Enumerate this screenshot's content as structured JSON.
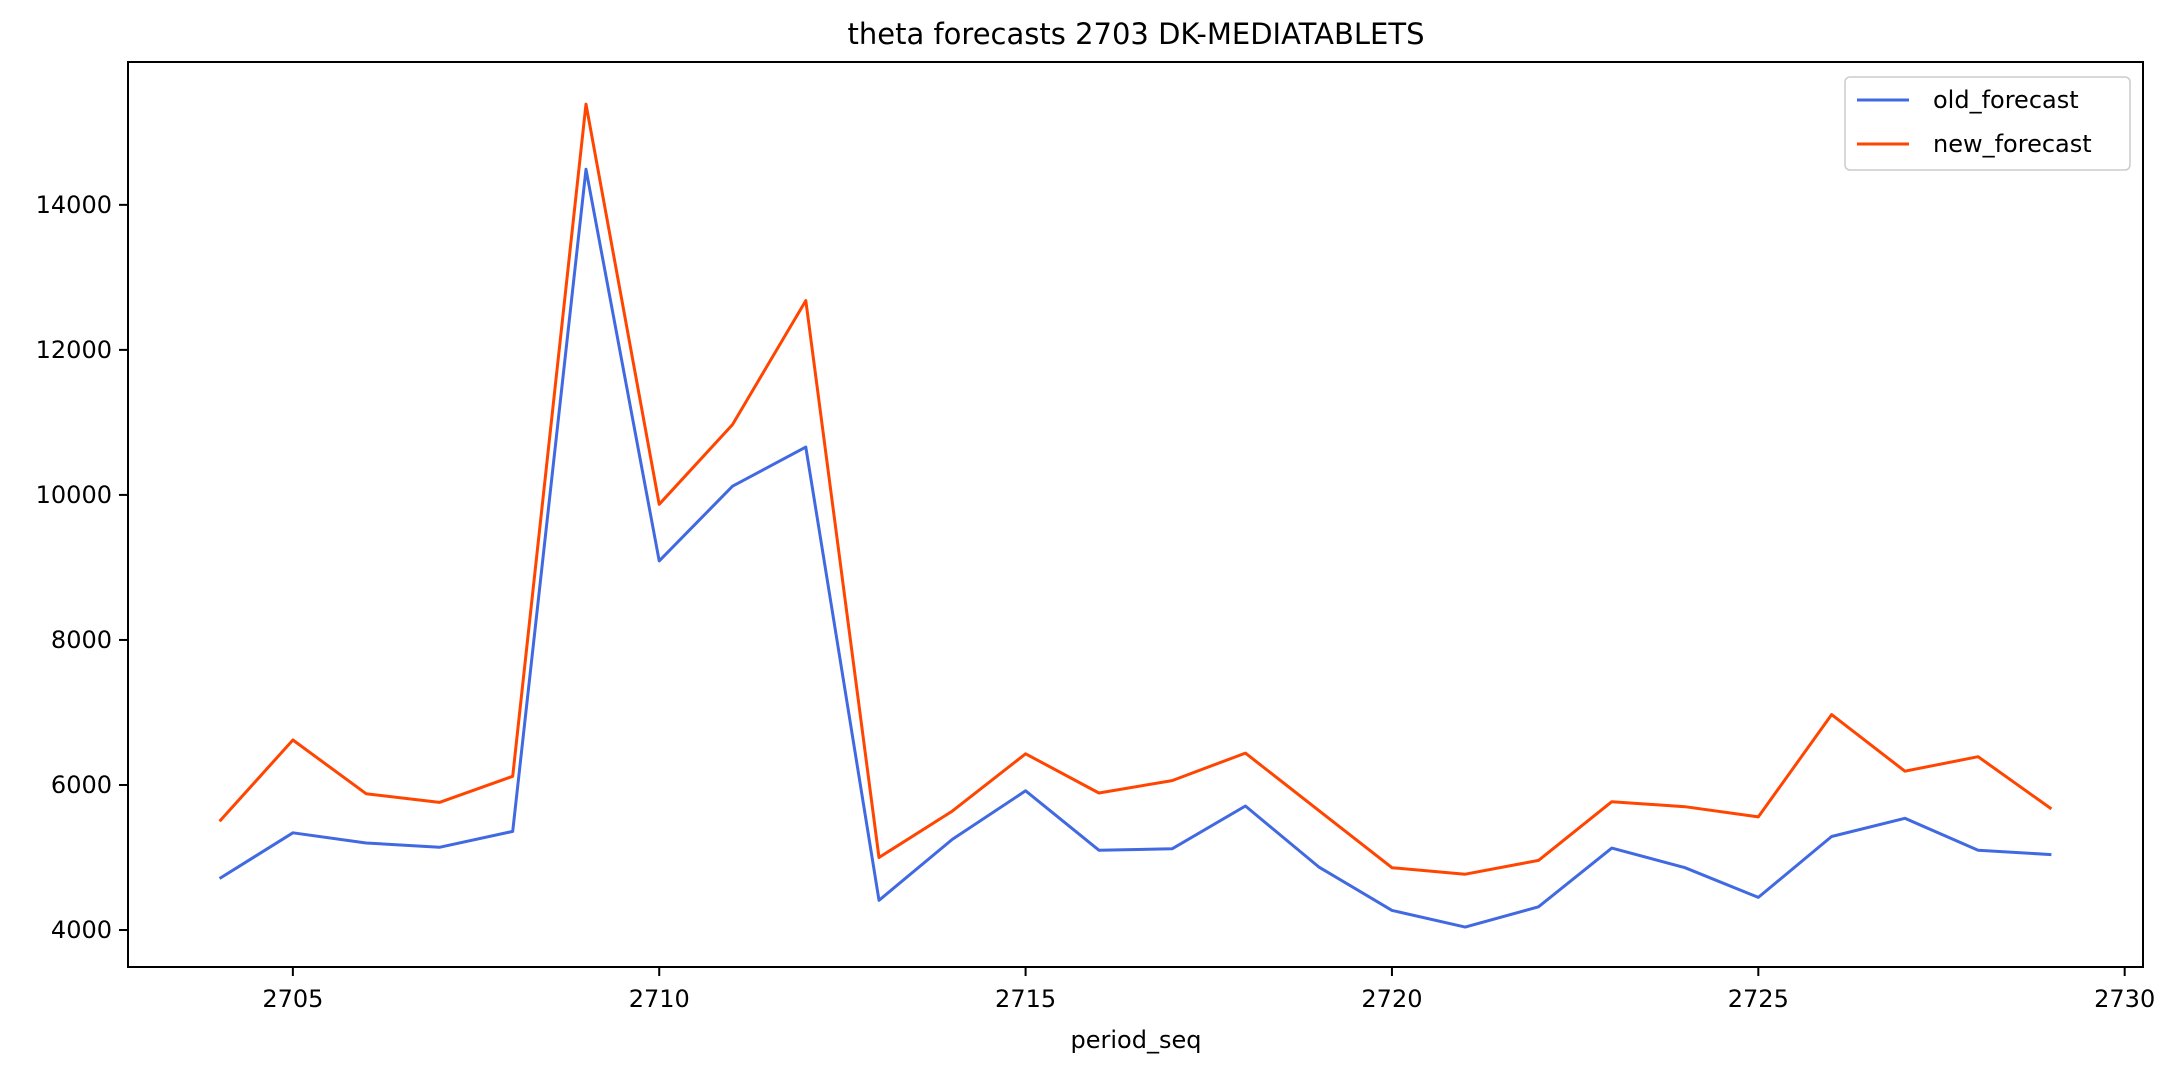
{
  "chart_data": {
    "type": "line",
    "title": "theta forecasts 2703 DK-MEDIATABLETS",
    "xlabel": "period_seq",
    "ylabel": "",
    "x": [
      2704,
      2705,
      2706,
      2707,
      2708,
      2709,
      2710,
      2711,
      2712,
      2713,
      2714,
      2715,
      2716,
      2717,
      2718,
      2719,
      2720,
      2721,
      2722,
      2723,
      2724,
      2725,
      2726,
      2727,
      2728,
      2729
    ],
    "xlim": [
      2702.75,
      2730.25
    ],
    "ylim": [
      3490,
      15970
    ],
    "xticks": [
      2705,
      2710,
      2715,
      2720,
      2725,
      2730
    ],
    "yticks": [
      4000,
      6000,
      8000,
      10000,
      12000,
      14000
    ],
    "grid": false,
    "legend": "top-right",
    "series": [
      {
        "name": "old_forecast",
        "color": "#4169e1",
        "values": [
          4710,
          5340,
          5200,
          5140,
          5360,
          14490,
          9090,
          10120,
          10660,
          4410,
          5250,
          5920,
          5100,
          5120,
          5710,
          4870,
          4270,
          4040,
          4320,
          5130,
          4860,
          4450,
          5290,
          5540,
          5100,
          5040
        ]
      },
      {
        "name": "new_forecast",
        "color": "#ff4500",
        "values": [
          5500,
          6620,
          5880,
          5760,
          6120,
          15390,
          9870,
          10970,
          12680,
          5000,
          5640,
          6430,
          5890,
          6060,
          6440,
          5650,
          4860,
          4770,
          4960,
          5770,
          5700,
          5560,
          6970,
          6190,
          6390,
          5670
        ]
      }
    ]
  }
}
